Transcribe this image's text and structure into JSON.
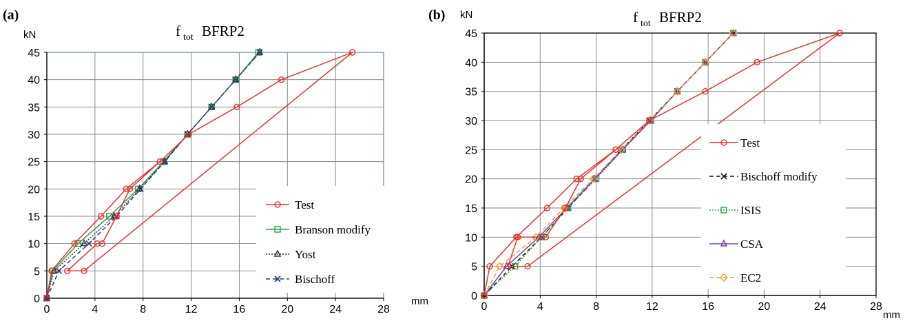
{
  "chart_data": [
    {
      "type": "line",
      "panel_label": "(a)",
      "title_main": "f",
      "title_sub": "tot",
      "title_rest": "BFRP2",
      "ylabel": "kN",
      "xlabel": "mm",
      "xlim": [
        0,
        28
      ],
      "ylim": [
        0,
        45
      ],
      "xticks": [
        0,
        4,
        8,
        12,
        16,
        20,
        24,
        28
      ],
      "yticks": [
        0,
        5,
        10,
        15,
        20,
        25,
        30,
        35,
        40,
        45
      ],
      "grid": true,
      "legend_position": "bottom-right",
      "series": [
        {
          "name": "Test",
          "color": "#e8322a",
          "dash": "solid",
          "marker": "circle",
          "points": [
            [
              0,
              0
            ],
            [
              0.4,
              5
            ],
            [
              2.3,
              10
            ],
            [
              4.5,
              15
            ],
            [
              6.6,
              20
            ],
            [
              9.4,
              25
            ],
            [
              11.8,
              30
            ],
            [
              15.8,
              35
            ],
            [
              19.5,
              40
            ],
            [
              25.4,
              45
            ],
            [
              3.1,
              5
            ],
            [
              1.7,
              5
            ],
            [
              4.2,
              10
            ],
            [
              4.6,
              10
            ],
            [
              5.8,
              15
            ],
            [
              6.9,
              20
            ],
            [
              9.4,
              25
            ]
          ]
        },
        {
          "name": "Branson modify",
          "color": "#22a84a",
          "dash": "solid",
          "marker": "square",
          "points": [
            [
              0,
              0
            ],
            [
              0.5,
              5
            ],
            [
              2.6,
              10
            ],
            [
              5.2,
              15
            ],
            [
              7.6,
              20
            ],
            [
              9.7,
              25
            ],
            [
              11.7,
              30
            ],
            [
              13.7,
              35
            ],
            [
              15.7,
              40
            ],
            [
              17.6,
              45
            ]
          ]
        },
        {
          "name": "Yost",
          "color": "#333333",
          "dash": "dot",
          "marker": "triangle",
          "points": [
            [
              0,
              0
            ],
            [
              0.6,
              5
            ],
            [
              3.1,
              10
            ],
            [
              5.6,
              15
            ],
            [
              7.7,
              20
            ],
            [
              9.8,
              25
            ],
            [
              11.7,
              30
            ],
            [
              13.7,
              35
            ],
            [
              15.7,
              40
            ],
            [
              17.7,
              45
            ]
          ]
        },
        {
          "name": "Bischoff",
          "color": "#1f3d7a",
          "dash": "dash",
          "marker": "x",
          "points": [
            [
              0,
              0
            ],
            [
              1,
              5
            ],
            [
              3.5,
              10
            ],
            [
              5.8,
              15
            ],
            [
              7.8,
              20
            ],
            [
              9.8,
              25
            ],
            [
              11.7,
              30
            ],
            [
              13.7,
              35
            ],
            [
              15.7,
              40
            ],
            [
              17.7,
              45
            ]
          ]
        }
      ]
    },
    {
      "type": "line",
      "panel_label": "(b)",
      "title_main": "f",
      "title_sub": "tot",
      "title_rest": "BFRP2",
      "ylabel": "kN",
      "xlabel": "mm",
      "xlim": [
        0,
        28
      ],
      "ylim": [
        0,
        45
      ],
      "xticks": [
        0,
        4,
        8,
        12,
        16,
        20,
        24,
        28
      ],
      "yticks": [
        0,
        5,
        10,
        15,
        20,
        25,
        30,
        35,
        40,
        45
      ],
      "grid": true,
      "legend_position": "right",
      "series": [
        {
          "name": "Test",
          "color": "#e8322a",
          "dash": "solid",
          "marker": "circle",
          "points": [
            [
              0,
              0
            ],
            [
              0.4,
              5
            ],
            [
              2.3,
              10
            ],
            [
              4.5,
              15
            ],
            [
              6.6,
              20
            ],
            [
              9.4,
              25
            ],
            [
              11.8,
              30
            ],
            [
              15.8,
              35
            ],
            [
              19.5,
              40
            ],
            [
              25.4,
              45
            ],
            [
              3.1,
              5
            ],
            [
              1.7,
              5
            ],
            [
              2.4,
              10
            ],
            [
              4.4,
              10
            ],
            [
              5.8,
              15
            ],
            [
              6.9,
              20
            ],
            [
              9.4,
              25
            ]
          ]
        },
        {
          "name": "Bischoff modify",
          "color": "#111111",
          "dash": "dash",
          "marker": "x",
          "points": [
            [
              0,
              0
            ],
            [
              2.0,
              5
            ],
            [
              4.1,
              10
            ],
            [
              6.0,
              15
            ],
            [
              7.9,
              20
            ],
            [
              9.8,
              25
            ],
            [
              11.8,
              30
            ],
            [
              13.8,
              35
            ],
            [
              15.8,
              40
            ],
            [
              17.8,
              45
            ]
          ]
        },
        {
          "name": "ISIS",
          "color": "#22a84a",
          "dash": "dot",
          "marker": "square",
          "points": [
            [
              0,
              0
            ],
            [
              2.2,
              5
            ],
            [
              4.1,
              10
            ],
            [
              6.0,
              15
            ],
            [
              8.0,
              20
            ],
            [
              9.9,
              25
            ],
            [
              11.9,
              30
            ],
            [
              13.8,
              35
            ],
            [
              15.8,
              40
            ],
            [
              17.8,
              45
            ]
          ]
        },
        {
          "name": "CSA",
          "color": "#7a3fb0",
          "dash": "solid",
          "marker": "triangle",
          "points": [
            [
              0,
              0
            ],
            [
              1.6,
              5
            ],
            [
              3.9,
              10
            ],
            [
              5.9,
              15
            ],
            [
              7.9,
              20
            ],
            [
              9.9,
              25
            ],
            [
              11.9,
              30
            ],
            [
              13.8,
              35
            ],
            [
              15.8,
              40
            ],
            [
              17.8,
              45
            ]
          ]
        },
        {
          "name": "EC2",
          "color": "#f29a2e",
          "dash": "dash",
          "marker": "diamond",
          "points": [
            [
              0,
              0
            ],
            [
              1.1,
              5
            ],
            [
              3.7,
              10
            ],
            [
              5.7,
              15
            ],
            [
              7.8,
              20
            ],
            [
              9.8,
              25
            ],
            [
              11.8,
              30
            ],
            [
              13.8,
              35
            ],
            [
              15.8,
              40
            ],
            [
              17.8,
              45
            ]
          ]
        }
      ]
    }
  ]
}
